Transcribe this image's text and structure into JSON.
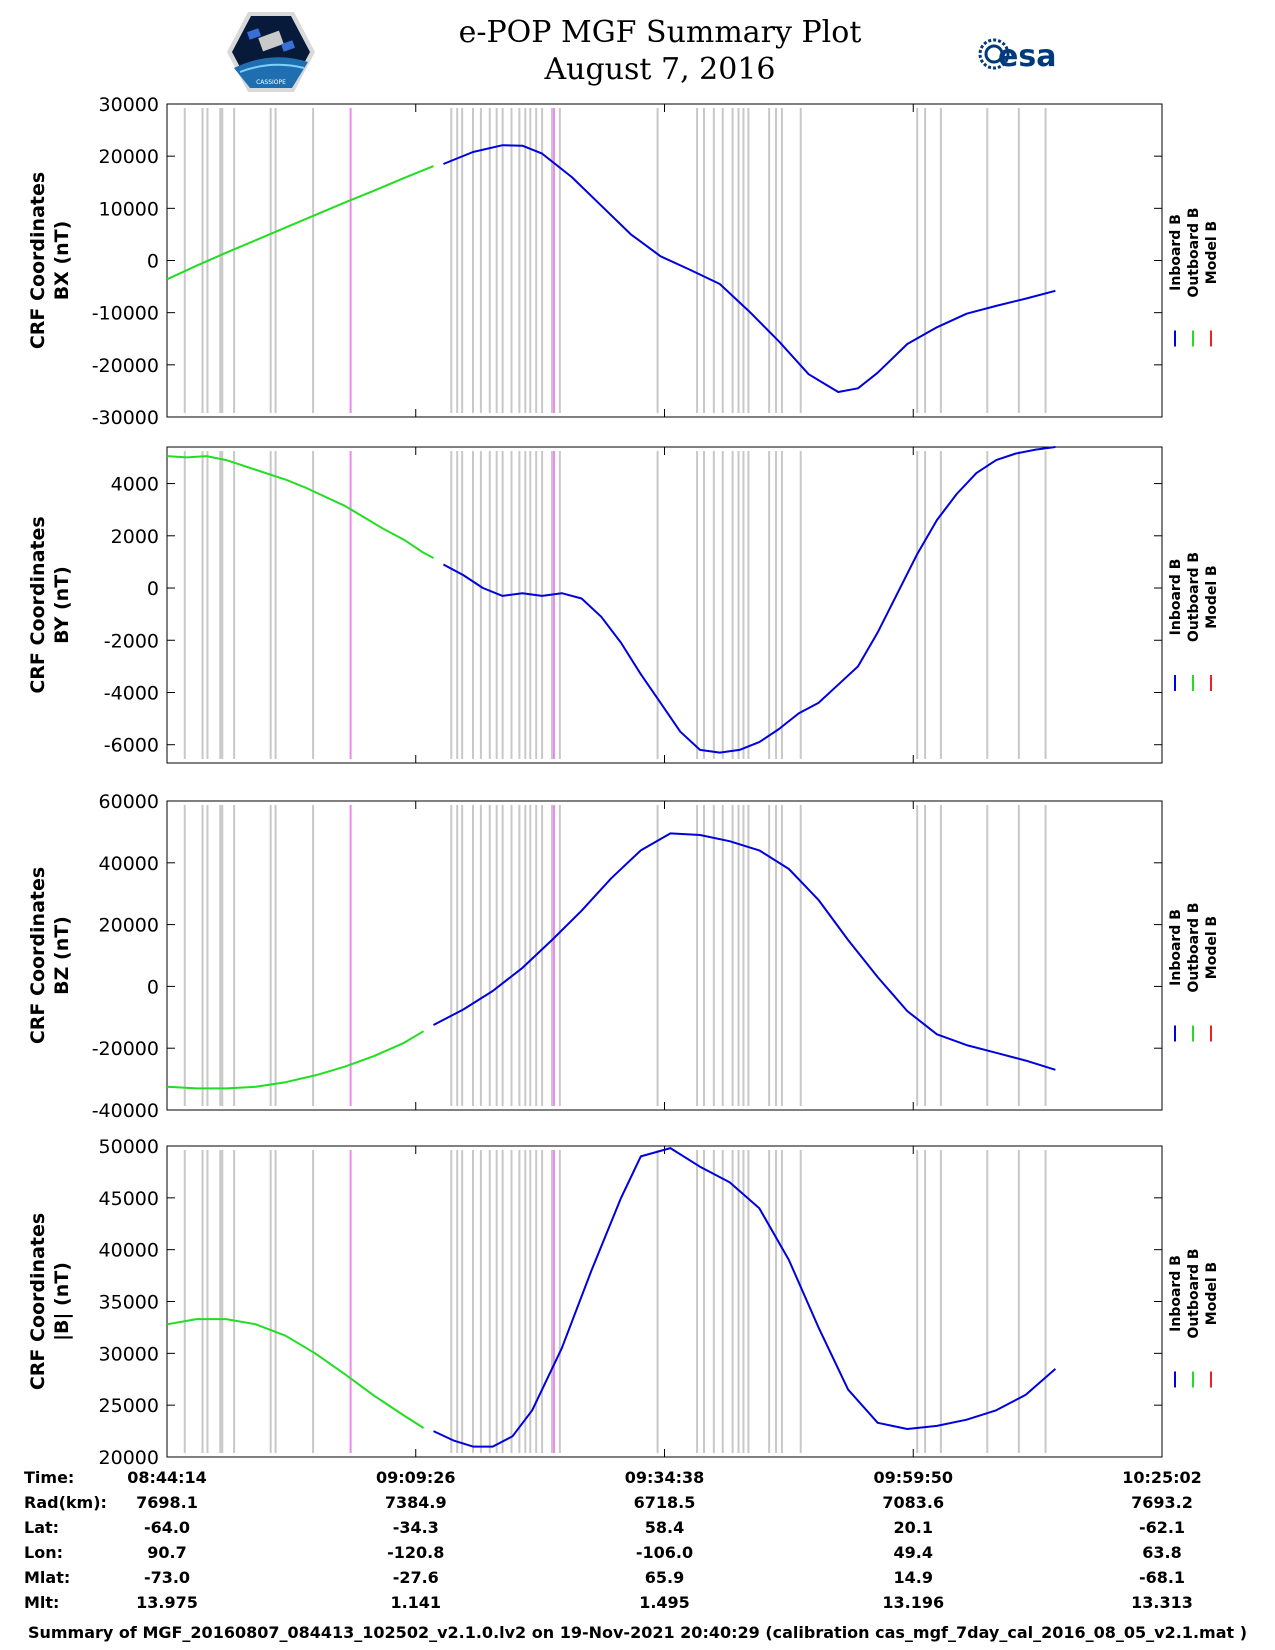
{
  "header": {
    "title_line1": "e-POP MGF Summary Plot",
    "title_line2": "August 7, 2016",
    "esa_text": "esa",
    "mission_badge_text": "CASSIOPE"
  },
  "colors": {
    "inboard": "#0000dd",
    "outboard": "#22dd22",
    "model": "#ee2222",
    "gap_lines": "#c8c8c8",
    "event_lines": "#ee88ee"
  },
  "chart_data": [
    {
      "type": "line",
      "ylabel_line1": "CRF Coordinates",
      "ylabel_line2": "BX (nT)",
      "ylim": [
        -30000,
        30000
      ],
      "yticks": [
        "30000",
        "20000",
        "10000",
        "0",
        "-10000",
        "-20000",
        "-30000"
      ],
      "ytick_values": [
        30000,
        20000,
        10000,
        0,
        -10000,
        -20000,
        -30000
      ],
      "legend": [
        "Inboard B",
        "Outboard B",
        "Model B"
      ],
      "series": [
        {
          "name": "Outboard B",
          "x": [
            0,
            3,
            6,
            9,
            12,
            15,
            18,
            21,
            24,
            27
          ],
          "values": [
            -3600,
            -1000,
            1500,
            3900,
            6300,
            8700,
            11100,
            13400,
            15800,
            18100
          ]
        },
        {
          "name": "Inboard B",
          "x": [
            28,
            31,
            34,
            36,
            38,
            41,
            44,
            47,
            50,
            53,
            56,
            59,
            62,
            65,
            68,
            70,
            72,
            75,
            78,
            81,
            84,
            87,
            90
          ],
          "values": [
            18500,
            20800,
            22100,
            22000,
            20500,
            16000,
            10500,
            5000,
            800,
            -1800,
            -4500,
            -9800,
            -15500,
            -21800,
            -25200,
            -24500,
            -21500,
            -16000,
            -12800,
            -10200,
            -8700,
            -7300,
            -5800
          ]
        }
      ]
    },
    {
      "type": "line",
      "ylabel_line1": "CRF Coordinates",
      "ylabel_line2": "BY (nT)",
      "ylim": [
        -6700,
        5400
      ],
      "yticks": [
        "4000",
        "2000",
        "0",
        "-2000",
        "-4000",
        "-6000"
      ],
      "ytick_values": [
        4000,
        2000,
        0,
        -2000,
        -4000,
        -6000
      ],
      "legend": [
        "Inboard B",
        "Outboard B",
        "Model B"
      ],
      "series": [
        {
          "name": "Outboard B",
          "x": [
            0,
            2,
            4,
            6,
            8,
            10,
            12,
            14,
            16,
            18,
            20,
            22,
            24,
            26,
            27
          ],
          "values": [
            5050,
            5000,
            5050,
            4900,
            4650,
            4400,
            4150,
            3850,
            3500,
            3150,
            2700,
            2250,
            1850,
            1350,
            1150
          ]
        },
        {
          "name": "Inboard B",
          "x": [
            28,
            30,
            32,
            34,
            36,
            38,
            40,
            42,
            44,
            46,
            48,
            50,
            52,
            54,
            56,
            58,
            60,
            62,
            64,
            66,
            68,
            70,
            72,
            74,
            76,
            78,
            80,
            82,
            84,
            86,
            88,
            90
          ],
          "values": [
            900,
            500,
            0,
            -300,
            -200,
            -300,
            -200,
            -400,
            -1100,
            -2100,
            -3300,
            -4400,
            -5500,
            -6200,
            -6300,
            -6200,
            -5900,
            -5400,
            -4800,
            -4400,
            -3700,
            -3000,
            -1700,
            -200,
            1300,
            2600,
            3600,
            4400,
            4900,
            5150,
            5300,
            5400
          ]
        }
      ]
    },
    {
      "type": "line",
      "ylabel_line1": "CRF Coordinates",
      "ylabel_line2": "BZ (nT)",
      "ylim": [
        -40000,
        60000
      ],
      "yticks": [
        "60000",
        "40000",
        "20000",
        "0",
        "-20000",
        "-40000"
      ],
      "ytick_values": [
        60000,
        40000,
        20000,
        0,
        -20000,
        -40000
      ],
      "legend": [
        "Inboard B",
        "Outboard B",
        "Model B"
      ],
      "series": [
        {
          "name": "Outboard B",
          "x": [
            0,
            3,
            6,
            9,
            12,
            15,
            18,
            21,
            24,
            26
          ],
          "values": [
            -32500,
            -33000,
            -33000,
            -32500,
            -31000,
            -28800,
            -26000,
            -22500,
            -18300,
            -14500
          ]
        },
        {
          "name": "Inboard B",
          "x": [
            27,
            30,
            33,
            36,
            39,
            42,
            45,
            48,
            51,
            54,
            57,
            60,
            63,
            66,
            69,
            72,
            75,
            78,
            81,
            84,
            87,
            90
          ],
          "values": [
            -12500,
            -7500,
            -1500,
            6000,
            15000,
            24500,
            35000,
            44000,
            49500,
            49000,
            47000,
            44000,
            38000,
            28000,
            15000,
            3000,
            -8000,
            -15500,
            -19000,
            -21500,
            -24000,
            -27000
          ]
        }
      ]
    },
    {
      "type": "line",
      "ylabel_line1": "CRF Coordinates",
      "ylabel_line2": "|B| (nT)",
      "ylim": [
        20000,
        50000
      ],
      "yticks": [
        "50000",
        "45000",
        "40000",
        "35000",
        "30000",
        "25000",
        "20000"
      ],
      "ytick_values": [
        50000,
        45000,
        40000,
        35000,
        30000,
        25000,
        20000
      ],
      "legend": [
        "Inboard B",
        "Outboard B",
        "Model B"
      ],
      "series": [
        {
          "name": "Outboard B",
          "x": [
            0,
            3,
            6,
            9,
            12,
            15,
            18,
            21,
            24,
            26
          ],
          "values": [
            32800,
            33300,
            33300,
            32800,
            31700,
            30000,
            28000,
            25900,
            24000,
            22800
          ]
        },
        {
          "name": "Inboard B",
          "x": [
            27,
            29,
            31,
            33,
            35,
            37,
            40,
            43,
            46,
            48,
            51,
            54,
            57,
            60,
            63,
            66,
            69,
            72,
            75,
            78,
            81,
            84,
            87,
            90
          ],
          "values": [
            22500,
            21600,
            21000,
            21000,
            22000,
            24500,
            30500,
            38000,
            45000,
            49000,
            49800,
            48000,
            46500,
            44000,
            39000,
            32500,
            26500,
            23300,
            22700,
            23000,
            23600,
            24500,
            26000,
            28500
          ]
        }
      ]
    }
  ],
  "x_axis": {
    "range_minutes": [
      0,
      100.8
    ],
    "label_minutes": [
      0,
      25.2,
      50.4,
      75.6,
      100.8
    ],
    "gap_lines_minutes": [
      1.8,
      3.6,
      4.1,
      5.4,
      5.6,
      6.8,
      10.5,
      11.0,
      14.8,
      28.8,
      29.4,
      29.9,
      31.0,
      31.8,
      32.7,
      33.4,
      34.0,
      34.9,
      35.7,
      36.3,
      36.8,
      37.4,
      38.0,
      39.0,
      39.8,
      49.7,
      53.7,
      54.4,
      55.4,
      56.3,
      57.3,
      57.9,
      58.4,
      58.9,
      61.0,
      61.7,
      62.3,
      64.2,
      76.0,
      76.8,
      78.4,
      83.1,
      86.3,
      89.0
    ],
    "event_lines_minutes": [
      18.6,
      39.2
    ]
  },
  "info_table": {
    "rows": [
      {
        "label": "Time:",
        "values": [
          "08:44:14",
          "09:09:26",
          "09:34:38",
          "09:59:50",
          "10:25:02"
        ]
      },
      {
        "label": "Rad(km):",
        "values": [
          "7698.1",
          "7384.9",
          "6718.5",
          "7083.6",
          "7693.2"
        ]
      },
      {
        "label": "Lat:",
        "values": [
          "-64.0",
          "-34.3",
          "58.4",
          "20.1",
          "-62.1"
        ]
      },
      {
        "label": "Lon:",
        "values": [
          "90.7",
          "-120.8",
          "-106.0",
          "49.4",
          "63.8"
        ]
      },
      {
        "label": "Mlat:",
        "values": [
          "-73.0",
          "-27.6",
          "65.9",
          "14.9",
          "-68.1"
        ]
      },
      {
        "label": "Mlt:",
        "values": [
          "13.975",
          "1.141",
          "1.495",
          "13.196",
          "13.313"
        ]
      }
    ]
  },
  "footer": "Summary of MGF_20160807_084413_102502_v2.1.0.lv2 on 19-Nov-2021 20:40:29 (calibration cas_mgf_7day_cal_2016_08_05_v2.1.mat )"
}
